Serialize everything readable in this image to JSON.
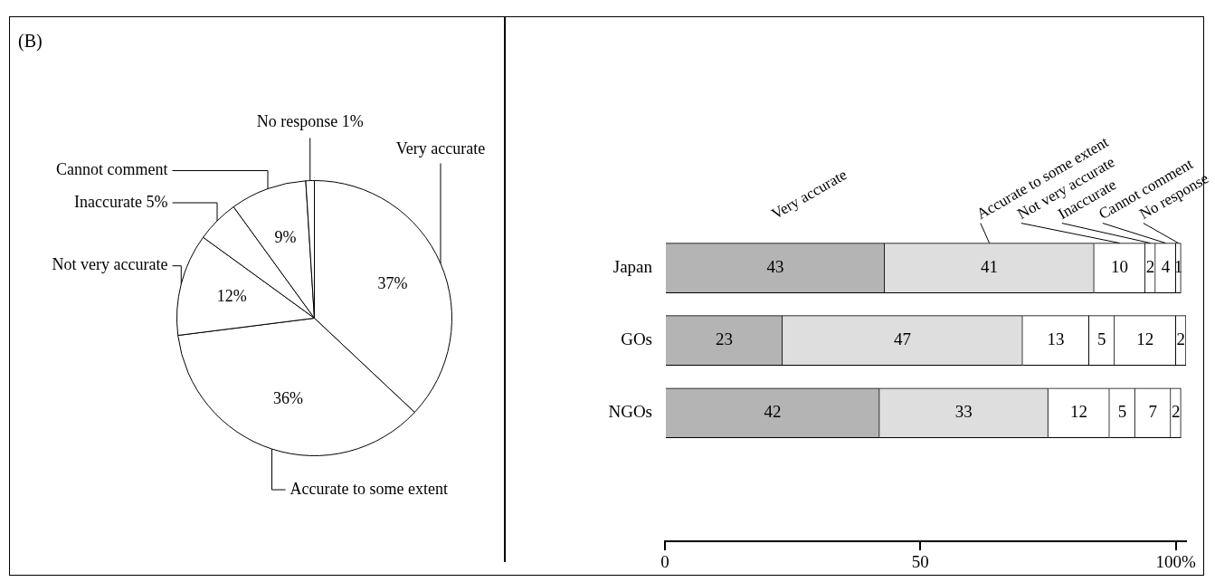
{
  "chart_data": [
    {
      "type": "pie",
      "title": "(B)",
      "categories": [
        "Very accurate",
        "Accurate to some extent",
        "Not very accurate",
        "Inaccurate",
        "Cannot comment",
        "No response"
      ],
      "values": [
        37,
        36,
        12,
        5,
        9,
        1
      ],
      "colors": [
        "#ffffff",
        "#ffffff",
        "#ffffff",
        "#ffffff",
        "#ffffff",
        "#ffffff"
      ],
      "value_labels": [
        "37%",
        "36%",
        "12%",
        "5%",
        "9%",
        "1%"
      ]
    },
    {
      "type": "bar",
      "orientation": "horizontal",
      "stacked": true,
      "categories": [
        "Japan",
        "GOs",
        "NGOs"
      ],
      "series": [
        {
          "name": "Very accurate",
          "color": "#b4b4b4",
          "values": [
            43,
            23,
            42
          ]
        },
        {
          "name": "Accurate to some extent",
          "color": "#dedede",
          "values": [
            41,
            47,
            33
          ]
        },
        {
          "name": "Not very accurate",
          "color": "#ffffff",
          "values": [
            10,
            13,
            12
          ]
        },
        {
          "name": "Inaccurate",
          "color": "#ffffff",
          "values": [
            2,
            5,
            5
          ]
        },
        {
          "name": "Cannot comment",
          "color": "#ffffff",
          "values": [
            4,
            12,
            7
          ]
        },
        {
          "name": "No response",
          "color": "#ffffff",
          "values": [
            1,
            2,
            2
          ]
        }
      ],
      "xlim": [
        0,
        102
      ],
      "xticks": [
        0,
        50,
        {
          "value": 100,
          "label": "100%"
        }
      ],
      "data_labels": true
    }
  ]
}
